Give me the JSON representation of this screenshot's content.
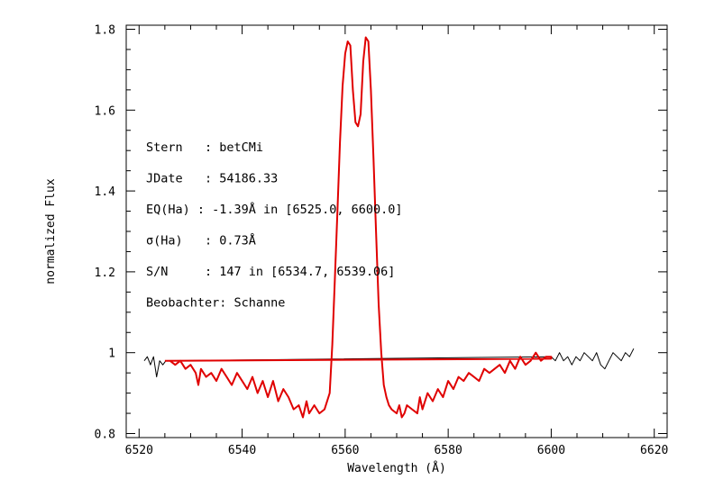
{
  "chart_data": {
    "type": "line",
    "title": "",
    "xlabel": "Wavelength (Å)",
    "ylabel": "normalized Flux",
    "xlim": [
      6517.5,
      6622.5
    ],
    "ylim": [
      0.79,
      1.81
    ],
    "x_ticks": [
      {
        "value": 6520,
        "label": "6520"
      },
      {
        "value": 6540,
        "label": "6540"
      },
      {
        "value": 6560,
        "label": "6560"
      },
      {
        "value": 6580,
        "label": "6580"
      },
      {
        "value": 6600,
        "label": "6600"
      },
      {
        "value": 6620,
        "label": "6620"
      }
    ],
    "y_ticks": [
      {
        "value": 0.8,
        "label": "0.8"
      },
      {
        "value": 1.0,
        "label": "1"
      },
      {
        "value": 1.2,
        "label": "1.2"
      },
      {
        "value": 1.4,
        "label": "1.4"
      },
      {
        "value": 1.6,
        "label": "1.6"
      },
      {
        "value": 1.8,
        "label": "1.8"
      }
    ],
    "grid": false,
    "annotations": [
      "Stern   : betCMi",
      "JDate   : 54186.33",
      "EQ(Ha) : -1.39Å in [6525.0, 6600.0]",
      "σ(Ha)   : 0.73Å",
      "S/N     : 147 in [6534.7, 6539.06]",
      "Beobachter: Schanne"
    ],
    "series": [
      {
        "color": "#000000",
        "x": [
          6521.0,
          6521.6,
          6522.2,
          6522.8,
          6523.4,
          6524.0,
          6524.6,
          6525.2,
          6600.0,
          6600.8,
          6601.6,
          6602.4,
          6603.2,
          6604.0,
          6604.8,
          6605.6,
          6606.4,
          6607.2,
          6608.0,
          6608.8,
          6609.6,
          6610.4,
          6611.2,
          6612.0,
          6612.8,
          6613.6,
          6614.4,
          6615.2,
          6616.0
        ],
        "y": [
          0.98,
          0.99,
          0.97,
          0.99,
          0.94,
          0.98,
          0.97,
          0.98,
          0.99,
          0.98,
          1.0,
          0.98,
          0.99,
          0.97,
          0.99,
          0.98,
          1.0,
          0.99,
          0.98,
          1.0,
          0.97,
          0.96,
          0.98,
          1.0,
          0.99,
          0.98,
          1.0,
          0.99,
          1.01
        ]
      },
      {
        "color": "#e00000",
        "x": [
          6525.0,
          6526.0,
          6527.0,
          6528.0,
          6529.0,
          6530.0,
          6531.0,
          6531.5,
          6532.0,
          6533.0,
          6534.0,
          6535.0,
          6536.0,
          6537.0,
          6538.0,
          6539.0,
          6540.0,
          6541.0,
          6542.0,
          6543.0,
          6544.0,
          6545.0,
          6546.0,
          6547.0,
          6548.0,
          6549.0,
          6550.0,
          6551.0,
          6551.8,
          6552.5,
          6553.0,
          6554.0,
          6555.0,
          6556.0,
          6557.0,
          6557.5,
          6558.0,
          6558.5,
          6559.0,
          6559.5,
          6560.0,
          6560.5,
          6561.0,
          6561.5,
          6562.0,
          6562.5,
          6563.0,
          6563.5,
          6564.0,
          6564.5,
          6565.0,
          6565.5,
          6566.0,
          6566.5,
          6567.0,
          6567.5,
          6568.0,
          6568.5,
          6569.0,
          6570.0,
          6570.5,
          6571.0,
          6571.5,
          6572.0,
          6573.0,
          6574.0,
          6574.5,
          6575.0,
          6576.0,
          6577.0,
          6578.0,
          6579.0,
          6580.0,
          6581.0,
          6582.0,
          6583.0,
          6584.0,
          6585.0,
          6586.0,
          6587.0,
          6588.0,
          6589.0,
          6590.0,
          6591.0,
          6592.0,
          6593.0,
          6594.0,
          6595.0,
          6596.0,
          6597.0,
          6598.0,
          6599.0,
          6600.0,
          6600.0,
          6525.0
        ],
        "y": [
          0.98,
          0.98,
          0.97,
          0.98,
          0.96,
          0.97,
          0.95,
          0.92,
          0.96,
          0.94,
          0.95,
          0.93,
          0.96,
          0.94,
          0.92,
          0.95,
          0.93,
          0.91,
          0.94,
          0.9,
          0.93,
          0.89,
          0.93,
          0.88,
          0.91,
          0.89,
          0.86,
          0.87,
          0.84,
          0.88,
          0.85,
          0.87,
          0.85,
          0.86,
          0.9,
          1.02,
          1.18,
          1.35,
          1.52,
          1.66,
          1.74,
          1.77,
          1.76,
          1.65,
          1.57,
          1.56,
          1.59,
          1.72,
          1.78,
          1.77,
          1.65,
          1.48,
          1.3,
          1.12,
          1.0,
          0.92,
          0.89,
          0.87,
          0.86,
          0.85,
          0.87,
          0.84,
          0.85,
          0.87,
          0.86,
          0.85,
          0.89,
          0.86,
          0.9,
          0.88,
          0.91,
          0.89,
          0.93,
          0.91,
          0.94,
          0.93,
          0.95,
          0.94,
          0.93,
          0.96,
          0.95,
          0.96,
          0.97,
          0.95,
          0.98,
          0.96,
          0.99,
          0.97,
          0.98,
          1.0,
          0.98,
          0.99,
          0.99,
          0.985,
          0.98
        ]
      }
    ]
  }
}
